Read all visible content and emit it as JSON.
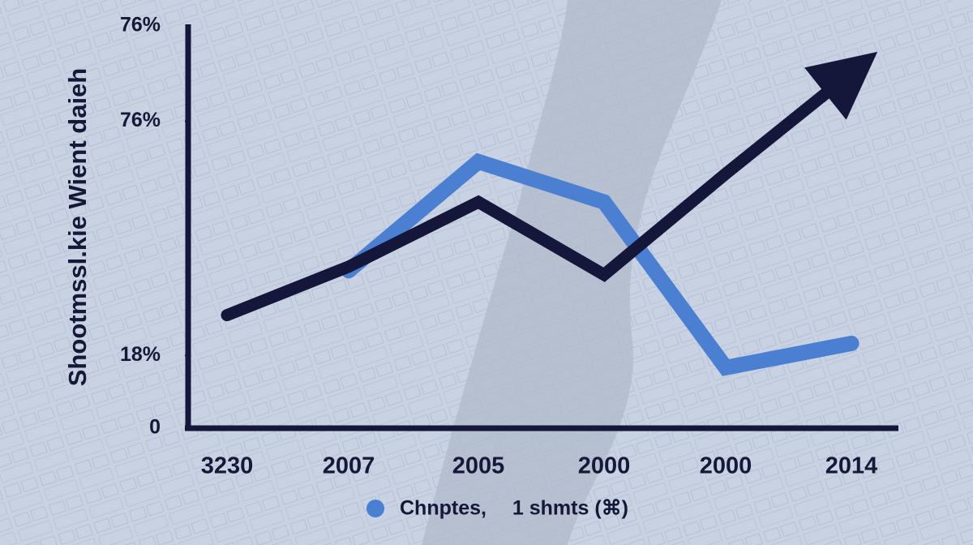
{
  "chart_data": {
    "type": "line",
    "y_label": "Shootmssl.kie Wient daieh",
    "y_axis_top_label": "76%",
    "categories": [
      "3230",
      "2007",
      "2005",
      "2000",
      "2000",
      "2014"
    ],
    "series": [
      {
        "color": "#14163a",
        "values": [
          28,
          40,
          56,
          38,
          63,
          88
        ],
        "arrow": true
      },
      {
        "name": "Chnptes,  1 shmts (⌘)",
        "color": "#4a7fd1",
        "values": [
          null,
          39,
          66,
          56,
          15,
          21
        ]
      }
    ],
    "ylim": [
      0,
      100
    ],
    "yticks": [
      0,
      {
        "value": 18,
        "label": "18%"
      },
      {
        "value": 76,
        "label": "76%"
      }
    ],
    "legend": "bottom"
  }
}
